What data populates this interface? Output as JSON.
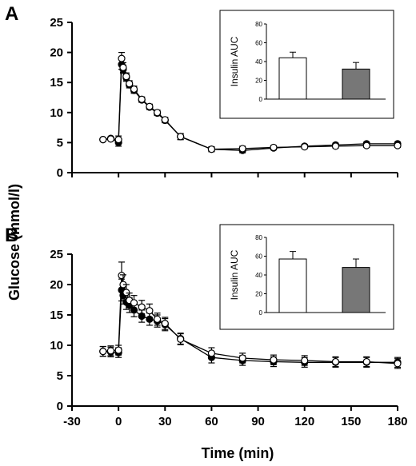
{
  "figure": {
    "ylabel": "Glucose (mmol/l)",
    "xlabel": "Time (min)"
  },
  "chart_data": [
    {
      "panel": "A",
      "type": "line",
      "xlim": [
        -30,
        180
      ],
      "ylim": [
        0,
        25
      ],
      "xticks": [
        -30,
        0,
        30,
        60,
        90,
        120,
        150,
        180
      ],
      "yticks": [
        0,
        5,
        10,
        15,
        20,
        25
      ],
      "xlabel": "",
      "ylabel": "Glucose (mmol/l)",
      "series": [
        {
          "marker": "open-circle",
          "x": [
            -10,
            -5,
            0,
            2,
            3,
            5,
            7,
            10,
            15,
            20,
            25,
            30,
            40,
            60,
            80,
            100,
            120,
            140,
            160,
            180
          ],
          "y": [
            5.5,
            5.6,
            5.5,
            19.0,
            17.5,
            16.0,
            14.8,
            13.9,
            12.2,
            11.0,
            10.0,
            8.8,
            6.0,
            3.9,
            4.0,
            4.2,
            4.3,
            4.4,
            4.5,
            4.5
          ],
          "err": [
            0,
            0,
            0.6,
            1.0,
            0.8,
            0.6,
            0.5,
            0.5,
            0.4,
            0.4,
            0.4,
            0.4,
            0.5,
            0.4,
            0.4,
            0.3,
            0.3,
            0.3,
            0.3,
            0.3
          ]
        },
        {
          "marker": "filled-circle",
          "x": [
            -10,
            -5,
            0,
            2,
            3,
            5,
            7,
            10,
            15,
            20,
            25,
            30,
            40,
            60,
            80,
            100,
            120,
            140,
            160,
            180
          ],
          "y": [
            5.5,
            5.7,
            5.0,
            18.0,
            17.2,
            15.8,
            14.6,
            13.7,
            12.1,
            10.9,
            9.9,
            8.7,
            6.0,
            3.9,
            3.7,
            4.1,
            4.4,
            4.6,
            4.8,
            4.8
          ],
          "err": [
            0,
            0,
            0.6,
            0.8,
            0.7,
            0.6,
            0.5,
            0.5,
            0.4,
            0.4,
            0.4,
            0.4,
            0.5,
            0.4,
            0.4,
            0.3,
            0.3,
            0.3,
            0.3,
            0.3
          ]
        }
      ],
      "inset": {
        "type": "bar",
        "ylabel": "Insulin AUC",
        "ylim": [
          0,
          80
        ],
        "yticks": [
          0,
          20,
          40,
          60,
          80
        ],
        "values": [
          44,
          32
        ],
        "errors": [
          6,
          7
        ],
        "fills": [
          "#ffffff",
          "#777777"
        ]
      }
    },
    {
      "panel": "B",
      "type": "line",
      "xlim": [
        -30,
        180
      ],
      "ylim": [
        0,
        25
      ],
      "xticks": [
        -30,
        0,
        30,
        60,
        90,
        120,
        150,
        180
      ],
      "yticks": [
        0,
        5,
        10,
        15,
        20,
        25
      ],
      "xlabel": "Time (min)",
      "ylabel": "Glucose (mmol/l)",
      "series": [
        {
          "marker": "open-circle",
          "x": [
            -10,
            -5,
            0,
            2,
            3,
            5,
            7,
            10,
            15,
            20,
            25,
            30,
            40,
            60,
            80,
            100,
            120,
            140,
            160,
            180
          ],
          "y": [
            9.0,
            9.1,
            9.2,
            21.5,
            20.0,
            18.7,
            17.4,
            17.0,
            16.3,
            15.7,
            14.3,
            13.6,
            11.0,
            8.7,
            7.9,
            7.6,
            7.5,
            7.3,
            7.3,
            7.0
          ],
          "err": [
            0.8,
            0.8,
            0.8,
            2.2,
            1.6,
            1.3,
            1.2,
            1.2,
            1.1,
            1.1,
            1.0,
            1.0,
            0.9,
            0.9,
            0.8,
            0.8,
            0.8,
            0.8,
            0.8,
            0.8
          ]
        },
        {
          "marker": "filled-circle",
          "x": [
            -10,
            -5,
            0,
            2,
            3,
            5,
            7,
            10,
            15,
            20,
            25,
            30,
            40,
            60,
            80,
            100,
            120,
            140,
            160,
            180
          ],
          "y": [
            9.0,
            8.9,
            8.8,
            19.1,
            18.2,
            17.1,
            16.6,
            15.8,
            14.8,
            14.3,
            14.0,
            13.4,
            11.1,
            8.0,
            7.5,
            7.3,
            7.2,
            7.2,
            7.2,
            7.2
          ],
          "err": [
            0.8,
            0.8,
            0.8,
            1.8,
            1.4,
            1.2,
            1.2,
            1.1,
            1.0,
            1.0,
            1.0,
            1.0,
            0.9,
            0.9,
            0.8,
            0.8,
            0.8,
            0.8,
            0.8,
            0.8
          ]
        }
      ],
      "inset": {
        "type": "bar",
        "ylabel": "Insulin AUC",
        "ylim": [
          0,
          80
        ],
        "yticks": [
          0,
          20,
          40,
          60,
          80
        ],
        "values": [
          57,
          48
        ],
        "errors": [
          8,
          9
        ],
        "fills": [
          "#ffffff",
          "#777777"
        ]
      }
    }
  ]
}
